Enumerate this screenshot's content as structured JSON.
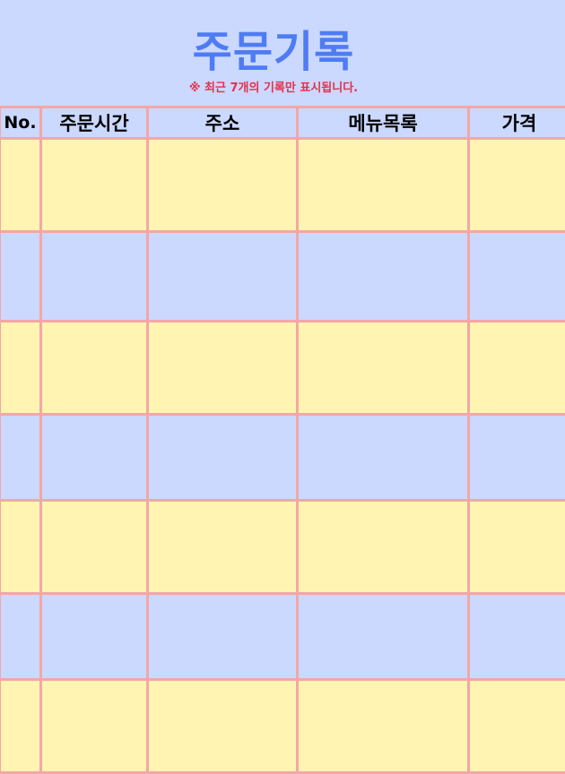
{
  "page": {
    "title": "주문기록",
    "notice": "※ 최근 7개의 기록만 표시됩니다."
  },
  "table": {
    "columns": [
      "No.",
      "주문시간",
      "주소",
      "메뉴목록",
      "가격"
    ],
    "rows": [
      {
        "no": "",
        "order_time": "",
        "address": "",
        "menu_list": "",
        "price": ""
      },
      {
        "no": "",
        "order_time": "",
        "address": "",
        "menu_list": "",
        "price": ""
      },
      {
        "no": "",
        "order_time": "",
        "address": "",
        "menu_list": "",
        "price": ""
      },
      {
        "no": "",
        "order_time": "",
        "address": "",
        "menu_list": "",
        "price": ""
      },
      {
        "no": "",
        "order_time": "",
        "address": "",
        "menu_list": "",
        "price": ""
      },
      {
        "no": "",
        "order_time": "",
        "address": "",
        "menu_list": "",
        "price": ""
      },
      {
        "no": "",
        "order_time": "",
        "address": "",
        "menu_list": "",
        "price": ""
      }
    ]
  },
  "colors": {
    "background": "#cbd8ff",
    "title": "#4e7cf2",
    "notice": "#e5304a",
    "row_yellow": "#fff4b2",
    "row_blue": "#cbd8ff",
    "grid_line": "#f3a7a7"
  }
}
